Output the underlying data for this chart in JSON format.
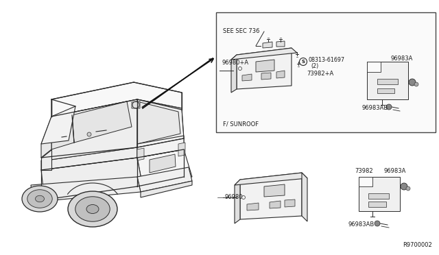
{
  "bg_color": "#ffffff",
  "lc": "#2a2a2a",
  "pc": "#1a1a1a",
  "diagram_ref": "R9700002",
  "upper_box_label": "F/ SUNROOF",
  "see_sec": "SEE SEC 736",
  "parts": {
    "96980A": "96980+A",
    "73982A": "73982+A",
    "96983A_up": "96983A",
    "08313": "08313-61697",
    "08313_qty": "(2)",
    "96983AB_up": "96983AB",
    "96980": "96980",
    "73982": "73982",
    "96983A_lo": "96983A",
    "96983AB_lo": "96983AB"
  }
}
